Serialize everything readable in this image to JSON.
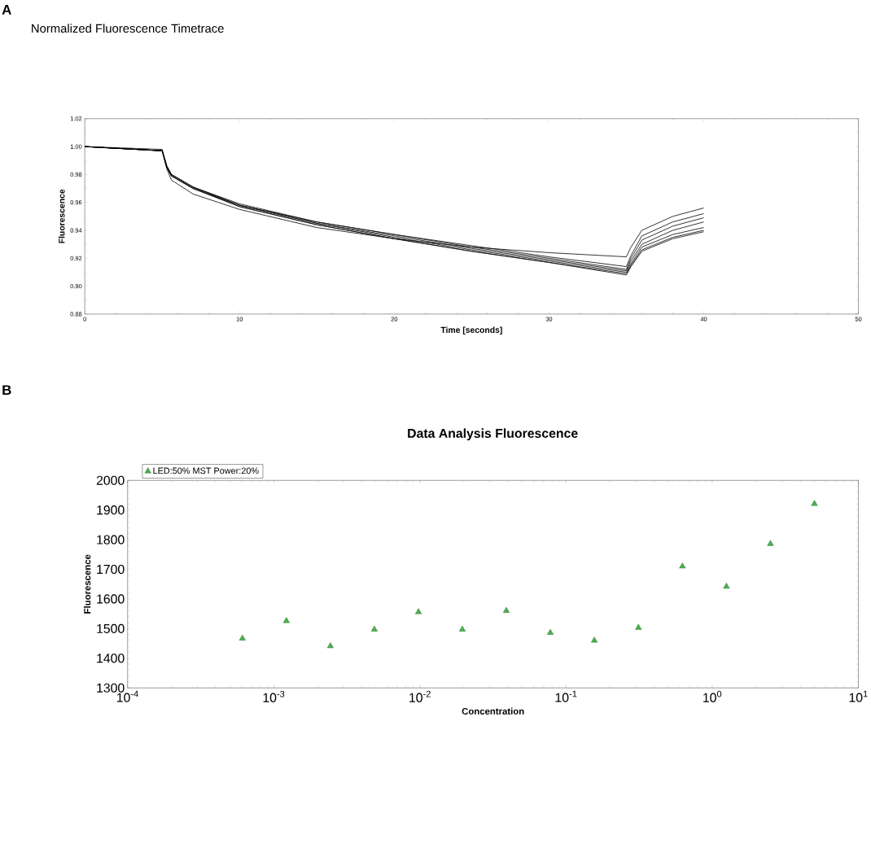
{
  "chart_data": [
    {
      "type": "line",
      "title": "Normalized Fluorescence Timetrace",
      "xlabel": "Time [seconds]",
      "ylabel": "Fluorescence",
      "annotations": [
        "A"
      ],
      "x": [
        0,
        5,
        5.3,
        5.6,
        7,
        10,
        15,
        20,
        25,
        30,
        35,
        35.3,
        36,
        38,
        40
      ],
      "series": [
        {
          "color": "#000000",
          "values": [
            1.0,
            0.997,
            0.984,
            0.976,
            0.966,
            0.955,
            0.942,
            0.934,
            0.928,
            0.924,
            0.921,
            0.928,
            0.94,
            0.95,
            0.956
          ]
        },
        {
          "color": "#000000",
          "values": [
            1.0,
            0.997,
            0.986,
            0.98,
            0.971,
            0.959,
            0.946,
            0.937,
            0.929,
            0.921,
            0.914,
            0.922,
            0.936,
            0.946,
            0.952
          ]
        },
        {
          "color": "#000000",
          "values": [
            1.0,
            0.997,
            0.986,
            0.98,
            0.971,
            0.958,
            0.946,
            0.937,
            0.928,
            0.92,
            0.912,
            0.92,
            0.933,
            0.943,
            0.949
          ]
        },
        {
          "color": "#000000",
          "values": [
            1.0,
            0.998,
            0.986,
            0.98,
            0.971,
            0.958,
            0.945,
            0.936,
            0.927,
            0.919,
            0.911,
            0.918,
            0.93,
            0.94,
            0.946
          ]
        },
        {
          "color": "#000000",
          "values": [
            1.0,
            0.997,
            0.985,
            0.979,
            0.97,
            0.958,
            0.945,
            0.935,
            0.926,
            0.918,
            0.91,
            0.916,
            0.928,
            0.937,
            0.942
          ]
        },
        {
          "color": "#000000",
          "values": [
            1.0,
            0.997,
            0.985,
            0.979,
            0.97,
            0.957,
            0.944,
            0.934,
            0.925,
            0.917,
            0.909,
            0.915,
            0.926,
            0.935,
            0.94
          ]
        },
        {
          "color": "#000000",
          "values": [
            1.0,
            0.997,
            0.985,
            0.979,
            0.97,
            0.957,
            0.944,
            0.934,
            0.925,
            0.917,
            0.908,
            0.914,
            0.925,
            0.934,
            0.939
          ]
        }
      ],
      "xlim": [
        0,
        50
      ],
      "xticks": [
        0,
        10,
        20,
        30,
        40,
        50
      ],
      "ylim": [
        0.88,
        1.02
      ],
      "yticks": [
        {
          "value": 0.88,
          "label": "0.88"
        },
        {
          "value": 0.9,
          "label": "0.90"
        },
        {
          "value": 0.92,
          "label": "0.92"
        },
        {
          "value": 0.94,
          "label": "0.94"
        },
        {
          "value": 0.96,
          "label": "0.96"
        },
        {
          "value": 0.98,
          "label": "0.98"
        },
        {
          "value": 1.0,
          "label": "1.00"
        },
        {
          "value": 1.02,
          "label": "1.02"
        }
      ],
      "grid": false,
      "legend": false,
      "marker": "none",
      "line_style": "solid"
    },
    {
      "type": "scatter",
      "title": "Data Analysis Fluorescence",
      "xlabel": "Concentration",
      "ylabel": "Fluorescence",
      "annotations": [
        "B"
      ],
      "x": [
        0.00061,
        0.00122,
        0.00244,
        0.00488,
        0.00977,
        0.0195,
        0.039,
        0.078,
        0.156,
        0.3125,
        0.625,
        1.25,
        2.5,
        5
      ],
      "series": [
        {
          "name": "LED:50% MST Power:20%",
          "color": "#4caf50",
          "values": [
            1467,
            1526,
            1441,
            1497,
            1556,
            1497,
            1560,
            1486,
            1460,
            1503,
            1710,
            1642,
            1786,
            1921
          ]
        }
      ],
      "log": "x",
      "xlim": [
        0.0001,
        10
      ],
      "xticks": [
        {
          "value": 0.0001,
          "label": "10$^{-4}$"
        },
        {
          "value": 0.001,
          "label": "10$^{-3}$"
        },
        {
          "value": 0.01,
          "label": "10$^{-2}$"
        },
        {
          "value": 0.1,
          "label": "10$^{-1}$"
        },
        {
          "value": 1,
          "label": "10$^{0}$"
        },
        {
          "value": 10,
          "label": "10$^{1}$"
        }
      ],
      "ylim": [
        1300,
        2000
      ],
      "yticks": [
        1300,
        1400,
        1500,
        1600,
        1700,
        1800,
        1900,
        2000
      ],
      "grid": false,
      "legend": "top left",
      "marker": "triangle"
    }
  ]
}
